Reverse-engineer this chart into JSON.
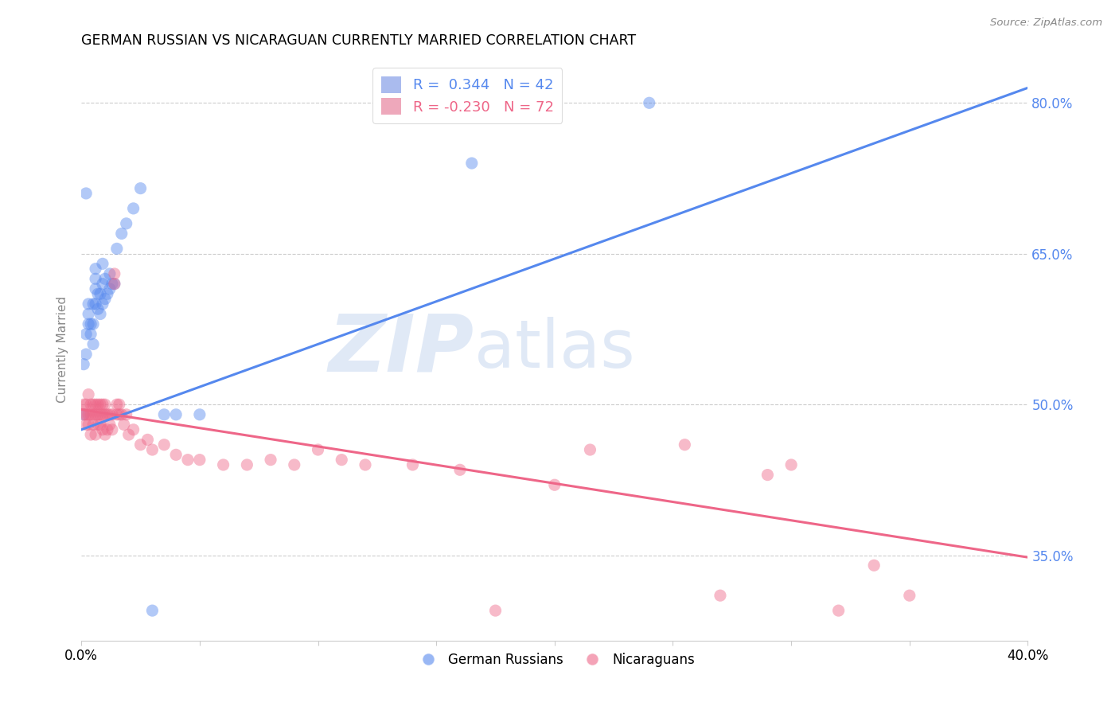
{
  "title": "GERMAN RUSSIAN VS NICARAGUAN CURRENTLY MARRIED CORRELATION CHART",
  "source": "Source: ZipAtlas.com",
  "ylabel": "Currently Married",
  "watermark_zip": "ZIP",
  "watermark_atlas": "atlas",
  "legend": [
    {
      "label_r": "R =  0.344",
      "label_n": "N = 42",
      "color": "#5588ee"
    },
    {
      "label_r": "R = -0.230",
      "label_n": "N = 72",
      "color": "#ee6688"
    }
  ],
  "legend_bottom": [
    "German Russians",
    "Nicaraguans"
  ],
  "blue_color": "#5588ee",
  "pink_color": "#ee6688",
  "blue_scatter_x": [
    0.001,
    0.001,
    0.002,
    0.002,
    0.003,
    0.003,
    0.003,
    0.004,
    0.004,
    0.005,
    0.005,
    0.005,
    0.006,
    0.006,
    0.006,
    0.006,
    0.007,
    0.007,
    0.008,
    0.008,
    0.009,
    0.009,
    0.009,
    0.01,
    0.01,
    0.011,
    0.012,
    0.012,
    0.013,
    0.014,
    0.015,
    0.017,
    0.019,
    0.022,
    0.025,
    0.03,
    0.035,
    0.04,
    0.05,
    0.002,
    0.24,
    0.165
  ],
  "blue_scatter_y": [
    0.49,
    0.54,
    0.55,
    0.57,
    0.58,
    0.59,
    0.6,
    0.57,
    0.58,
    0.56,
    0.58,
    0.6,
    0.6,
    0.615,
    0.625,
    0.635,
    0.595,
    0.61,
    0.59,
    0.61,
    0.6,
    0.62,
    0.64,
    0.605,
    0.625,
    0.61,
    0.615,
    0.63,
    0.62,
    0.62,
    0.655,
    0.67,
    0.68,
    0.695,
    0.715,
    0.295,
    0.49,
    0.49,
    0.49,
    0.71,
    0.8,
    0.74
  ],
  "pink_scatter_x": [
    0.001,
    0.001,
    0.002,
    0.002,
    0.002,
    0.003,
    0.003,
    0.003,
    0.004,
    0.004,
    0.004,
    0.005,
    0.005,
    0.005,
    0.006,
    0.006,
    0.006,
    0.007,
    0.007,
    0.007,
    0.008,
    0.008,
    0.008,
    0.009,
    0.009,
    0.009,
    0.01,
    0.01,
    0.01,
    0.011,
    0.011,
    0.012,
    0.012,
    0.013,
    0.013,
    0.014,
    0.014,
    0.015,
    0.015,
    0.016,
    0.016,
    0.017,
    0.018,
    0.019,
    0.02,
    0.022,
    0.025,
    0.028,
    0.03,
    0.035,
    0.04,
    0.045,
    0.05,
    0.06,
    0.07,
    0.08,
    0.09,
    0.1,
    0.11,
    0.12,
    0.14,
    0.16,
    0.175,
    0.2,
    0.215,
    0.255,
    0.27,
    0.29,
    0.3,
    0.32,
    0.335,
    0.35
  ],
  "pink_scatter_y": [
    0.49,
    0.5,
    0.48,
    0.49,
    0.5,
    0.48,
    0.49,
    0.51,
    0.47,
    0.49,
    0.5,
    0.48,
    0.49,
    0.5,
    0.47,
    0.49,
    0.5,
    0.48,
    0.49,
    0.5,
    0.48,
    0.49,
    0.5,
    0.475,
    0.49,
    0.5,
    0.47,
    0.49,
    0.5,
    0.475,
    0.49,
    0.48,
    0.49,
    0.475,
    0.49,
    0.62,
    0.63,
    0.49,
    0.5,
    0.49,
    0.5,
    0.49,
    0.48,
    0.49,
    0.47,
    0.475,
    0.46,
    0.465,
    0.455,
    0.46,
    0.45,
    0.445,
    0.445,
    0.44,
    0.44,
    0.445,
    0.44,
    0.455,
    0.445,
    0.44,
    0.44,
    0.435,
    0.295,
    0.42,
    0.455,
    0.46,
    0.31,
    0.43,
    0.44,
    0.295,
    0.34,
    0.31
  ],
  "xmin": 0.0,
  "xmax": 0.4,
  "ymin": 0.265,
  "ymax": 0.845,
  "blue_line_x0": 0.0,
  "blue_line_y0": 0.475,
  "blue_line_x1": 0.4,
  "blue_line_y1": 0.815,
  "pink_line_x0": 0.0,
  "pink_line_y0": 0.495,
  "pink_line_x1": 0.4,
  "pink_line_y1": 0.348,
  "ytick_positions": [
    0.35,
    0.5,
    0.65,
    0.8
  ],
  "ytick_labels": [
    "35.0%",
    "50.0%",
    "65.0%",
    "80.0%"
  ],
  "xtick_positions": [
    0.0,
    0.05,
    0.1,
    0.15,
    0.2,
    0.25,
    0.3,
    0.35,
    0.4
  ],
  "xtick_labels": [
    "0.0%",
    "",
    "",
    "",
    "",
    "",
    "",
    "",
    "40.0%"
  ]
}
